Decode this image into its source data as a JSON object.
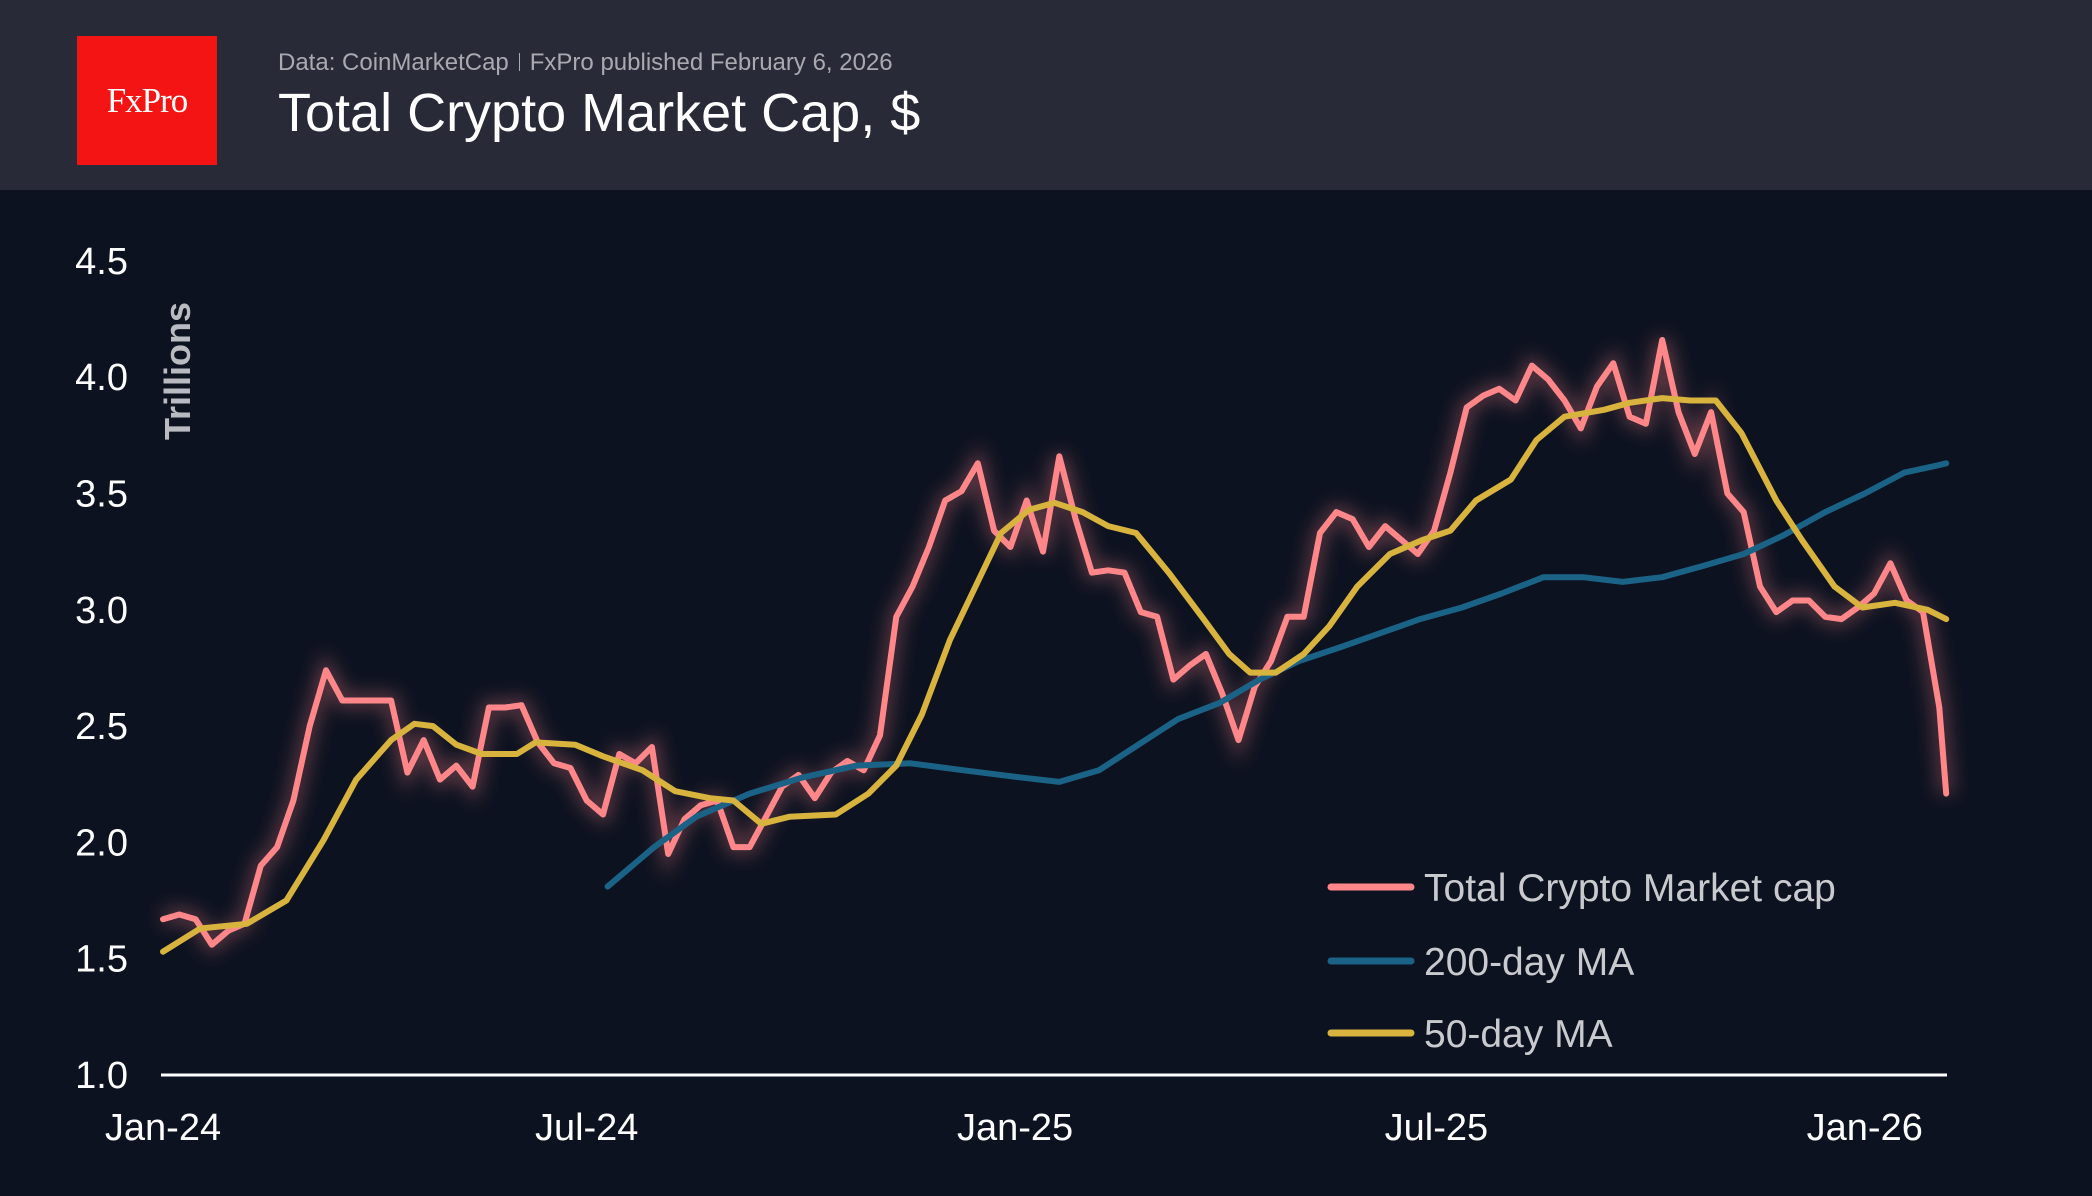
{
  "header": {
    "logo_text": "FxPro",
    "source": "Data: CoinMarketCap",
    "publisher": "FxPro published February 6, 2026",
    "title": "Total Crypto Market Cap, $"
  },
  "colors": {
    "header_bg": "#282a37",
    "chart_bg": "#0d1220",
    "logo_red": "#f41414"
  },
  "chart_data": {
    "type": "line",
    "title": "Total Crypto Market Cap, $",
    "ylabel": "Trillions",
    "xlabel": "",
    "ylim": [
      1.0,
      4.5
    ],
    "xlim": [
      "2024-01-01",
      "2026-02-05"
    ],
    "grid": false,
    "legend_position": "bottom-right",
    "y_ticks": [
      {
        "value": 1.0,
        "label": "1.0"
      },
      {
        "value": 1.5,
        "label": "1.5"
      },
      {
        "value": 2.0,
        "label": "2.0"
      },
      {
        "value": 2.5,
        "label": "2.5"
      },
      {
        "value": 3.0,
        "label": "3.0"
      },
      {
        "value": 3.5,
        "label": "3.5"
      },
      {
        "value": 4.0,
        "label": "4.0"
      },
      {
        "value": 4.5,
        "label": "4.5"
      }
    ],
    "x_ticks": [
      {
        "date": "2024-01-01",
        "label": "Jan-24"
      },
      {
        "date": "2024-07-01",
        "label": "Jul-24"
      },
      {
        "date": "2025-01-01",
        "label": "Jan-25"
      },
      {
        "date": "2025-07-01",
        "label": "Jul-25"
      },
      {
        "date": "2026-01-01",
        "label": "Jan-26"
      }
    ],
    "series": [
      {
        "name": "Total Crypto Market cap",
        "color": "#ff8789",
        "glow": true,
        "points": [
          [
            "2024-01-01",
            1.67
          ],
          [
            "2024-01-08",
            1.69
          ],
          [
            "2024-01-15",
            1.67
          ],
          [
            "2024-01-22",
            1.56
          ],
          [
            "2024-01-29",
            1.62
          ],
          [
            "2024-02-05",
            1.65
          ],
          [
            "2024-02-12",
            1.9
          ],
          [
            "2024-02-19",
            1.98
          ],
          [
            "2024-02-26",
            2.18
          ],
          [
            "2024-03-04",
            2.5
          ],
          [
            "2024-03-11",
            2.74
          ],
          [
            "2024-03-18",
            2.61
          ],
          [
            "2024-03-25",
            2.61
          ],
          [
            "2024-04-01",
            2.61
          ],
          [
            "2024-04-08",
            2.61
          ],
          [
            "2024-04-15",
            2.3
          ],
          [
            "2024-04-22",
            2.44
          ],
          [
            "2024-04-29",
            2.27
          ],
          [
            "2024-05-06",
            2.33
          ],
          [
            "2024-05-13",
            2.24
          ],
          [
            "2024-05-20",
            2.58
          ],
          [
            "2024-05-27",
            2.58
          ],
          [
            "2024-06-03",
            2.59
          ],
          [
            "2024-06-10",
            2.43
          ],
          [
            "2024-06-17",
            2.34
          ],
          [
            "2024-06-24",
            2.32
          ],
          [
            "2024-07-01",
            2.18
          ],
          [
            "2024-07-08",
            2.12
          ],
          [
            "2024-07-15",
            2.38
          ],
          [
            "2024-07-22",
            2.34
          ],
          [
            "2024-07-29",
            2.41
          ],
          [
            "2024-08-05",
            1.95
          ],
          [
            "2024-08-12",
            2.1
          ],
          [
            "2024-08-19",
            2.16
          ],
          [
            "2024-08-26",
            2.18
          ],
          [
            "2024-09-02",
            1.98
          ],
          [
            "2024-09-09",
            1.98
          ],
          [
            "2024-09-16",
            2.11
          ],
          [
            "2024-09-23",
            2.24
          ],
          [
            "2024-09-30",
            2.29
          ],
          [
            "2024-10-07",
            2.19
          ],
          [
            "2024-10-14",
            2.3
          ],
          [
            "2024-10-21",
            2.35
          ],
          [
            "2024-10-28",
            2.31
          ],
          [
            "2024-11-04",
            2.46
          ],
          [
            "2024-11-11",
            2.97
          ],
          [
            "2024-11-18",
            3.1
          ],
          [
            "2024-11-25",
            3.27
          ],
          [
            "2024-12-02",
            3.47
          ],
          [
            "2024-12-09",
            3.51
          ],
          [
            "2024-12-16",
            3.63
          ],
          [
            "2024-12-23",
            3.34
          ],
          [
            "2024-12-30",
            3.27
          ],
          [
            "2025-01-06",
            3.47
          ],
          [
            "2025-01-13",
            3.25
          ],
          [
            "2025-01-20",
            3.66
          ],
          [
            "2025-01-27",
            3.39
          ],
          [
            "2025-02-03",
            3.16
          ],
          [
            "2025-02-10",
            3.17
          ],
          [
            "2025-02-17",
            3.16
          ],
          [
            "2025-02-24",
            2.99
          ],
          [
            "2025-03-03",
            2.97
          ],
          [
            "2025-03-10",
            2.7
          ],
          [
            "2025-03-17",
            2.76
          ],
          [
            "2025-03-24",
            2.81
          ],
          [
            "2025-03-31",
            2.64
          ],
          [
            "2025-04-07",
            2.44
          ],
          [
            "2025-04-14",
            2.67
          ],
          [
            "2025-04-21",
            2.78
          ],
          [
            "2025-04-28",
            2.97
          ],
          [
            "2025-05-05",
            2.97
          ],
          [
            "2025-05-12",
            3.33
          ],
          [
            "2025-05-19",
            3.42
          ],
          [
            "2025-05-26",
            3.39
          ],
          [
            "2025-06-02",
            3.27
          ],
          [
            "2025-06-09",
            3.36
          ],
          [
            "2025-06-16",
            3.3
          ],
          [
            "2025-06-23",
            3.24
          ],
          [
            "2025-06-30",
            3.34
          ],
          [
            "2025-07-07",
            3.59
          ],
          [
            "2025-07-14",
            3.87
          ],
          [
            "2025-07-21",
            3.92
          ],
          [
            "2025-07-28",
            3.95
          ],
          [
            "2025-08-04",
            3.9
          ],
          [
            "2025-08-11",
            4.05
          ],
          [
            "2025-08-18",
            3.99
          ],
          [
            "2025-08-25",
            3.9
          ],
          [
            "2025-09-01",
            3.78
          ],
          [
            "2025-09-08",
            3.96
          ],
          [
            "2025-09-15",
            4.06
          ],
          [
            "2025-09-22",
            3.83
          ],
          [
            "2025-09-29",
            3.8
          ],
          [
            "2025-10-06",
            4.16
          ],
          [
            "2025-10-13",
            3.85
          ],
          [
            "2025-10-20",
            3.67
          ],
          [
            "2025-10-27",
            3.85
          ],
          [
            "2025-11-03",
            3.5
          ],
          [
            "2025-11-10",
            3.42
          ],
          [
            "2025-11-17",
            3.1
          ],
          [
            "2025-11-24",
            2.99
          ],
          [
            "2025-12-01",
            3.04
          ],
          [
            "2025-12-08",
            3.04
          ],
          [
            "2025-12-15",
            2.97
          ],
          [
            "2025-12-22",
            2.96
          ],
          [
            "2025-12-29",
            3.01
          ],
          [
            "2026-01-05",
            3.07
          ],
          [
            "2026-01-12",
            3.2
          ],
          [
            "2026-01-19",
            3.04
          ],
          [
            "2026-01-26",
            2.99
          ],
          [
            "2026-02-02",
            2.58
          ],
          [
            "2026-02-05",
            2.21
          ]
        ]
      },
      {
        "name": "200-day MA",
        "color": "#1b6386",
        "glow": false,
        "points": [
          [
            "2024-07-10",
            1.81
          ],
          [
            "2024-07-30",
            1.98
          ],
          [
            "2024-08-17",
            2.11
          ],
          [
            "2024-09-09",
            2.21
          ],
          [
            "2024-10-02",
            2.28
          ],
          [
            "2024-10-25",
            2.33
          ],
          [
            "2024-11-17",
            2.34
          ],
          [
            "2024-12-10",
            2.31
          ],
          [
            "2025-01-03",
            2.28
          ],
          [
            "2025-01-20",
            2.26
          ],
          [
            "2025-02-06",
            2.31
          ],
          [
            "2025-02-23",
            2.42
          ],
          [
            "2025-03-12",
            2.53
          ],
          [
            "2025-03-30",
            2.6
          ],
          [
            "2025-04-16",
            2.7
          ],
          [
            "2025-05-03",
            2.78
          ],
          [
            "2025-05-21",
            2.84
          ],
          [
            "2025-06-07",
            2.9
          ],
          [
            "2025-06-24",
            2.96
          ],
          [
            "2025-07-12",
            3.01
          ],
          [
            "2025-07-29",
            3.07
          ],
          [
            "2025-08-16",
            3.14
          ],
          [
            "2025-09-02",
            3.14
          ],
          [
            "2025-09-19",
            3.12
          ],
          [
            "2025-10-06",
            3.14
          ],
          [
            "2025-10-24",
            3.19
          ],
          [
            "2025-11-10",
            3.24
          ],
          [
            "2025-11-27",
            3.32
          ],
          [
            "2025-12-15",
            3.42
          ],
          [
            "2026-01-01",
            3.5
          ],
          [
            "2026-01-18",
            3.59
          ],
          [
            "2026-02-01",
            3.62
          ],
          [
            "2026-02-05",
            3.63
          ]
        ]
      },
      {
        "name": "50-day MA",
        "color": "#d8b43f",
        "glow": false,
        "points": [
          [
            "2024-01-01",
            1.53
          ],
          [
            "2024-01-17",
            1.63
          ],
          [
            "2024-02-06",
            1.65
          ],
          [
            "2024-02-23",
            1.75
          ],
          [
            "2024-03-10",
            2.01
          ],
          [
            "2024-03-24",
            2.27
          ],
          [
            "2024-04-08",
            2.44
          ],
          [
            "2024-04-18",
            2.51
          ],
          [
            "2024-04-26",
            2.5
          ],
          [
            "2024-05-06",
            2.42
          ],
          [
            "2024-05-17",
            2.38
          ],
          [
            "2024-06-01",
            2.38
          ],
          [
            "2024-06-09",
            2.43
          ],
          [
            "2024-06-26",
            2.42
          ],
          [
            "2024-07-08",
            2.37
          ],
          [
            "2024-07-25",
            2.31
          ],
          [
            "2024-08-08",
            2.22
          ],
          [
            "2024-08-23",
            2.19
          ],
          [
            "2024-09-02",
            2.18
          ],
          [
            "2024-09-14",
            2.08
          ],
          [
            "2024-09-26",
            2.11
          ],
          [
            "2024-10-16",
            2.12
          ],
          [
            "2024-10-30",
            2.21
          ],
          [
            "2024-11-11",
            2.33
          ],
          [
            "2024-11-22",
            2.55
          ],
          [
            "2024-12-04",
            2.87
          ],
          [
            "2024-12-15",
            3.1
          ],
          [
            "2024-12-26",
            3.33
          ],
          [
            "2025-01-07",
            3.43
          ],
          [
            "2025-01-18",
            3.46
          ],
          [
            "2025-01-30",
            3.42
          ],
          [
            "2025-02-10",
            3.36
          ],
          [
            "2025-02-22",
            3.33
          ],
          [
            "2025-03-08",
            3.16
          ],
          [
            "2025-03-23",
            2.96
          ],
          [
            "2025-04-03",
            2.81
          ],
          [
            "2025-04-12",
            2.73
          ],
          [
            "2025-04-23",
            2.73
          ],
          [
            "2025-05-05",
            2.81
          ],
          [
            "2025-05-16",
            2.93
          ],
          [
            "2025-05-28",
            3.1
          ],
          [
            "2025-06-11",
            3.24
          ],
          [
            "2025-06-25",
            3.3
          ],
          [
            "2025-07-07",
            3.34
          ],
          [
            "2025-07-18",
            3.47
          ],
          [
            "2025-08-02",
            3.56
          ],
          [
            "2025-08-13",
            3.73
          ],
          [
            "2025-08-25",
            3.83
          ],
          [
            "2025-09-11",
            3.86
          ],
          [
            "2025-09-22",
            3.89
          ],
          [
            "2025-10-06",
            3.91
          ],
          [
            "2025-10-18",
            3.9
          ],
          [
            "2025-10-29",
            3.9
          ],
          [
            "2025-11-09",
            3.76
          ],
          [
            "2025-11-24",
            3.47
          ],
          [
            "2025-12-05",
            3.3
          ],
          [
            "2025-12-19",
            3.1
          ],
          [
            "2025-12-31",
            3.01
          ],
          [
            "2026-01-14",
            3.03
          ],
          [
            "2026-01-28",
            3.0
          ],
          [
            "2026-02-05",
            2.96
          ]
        ]
      }
    ]
  }
}
